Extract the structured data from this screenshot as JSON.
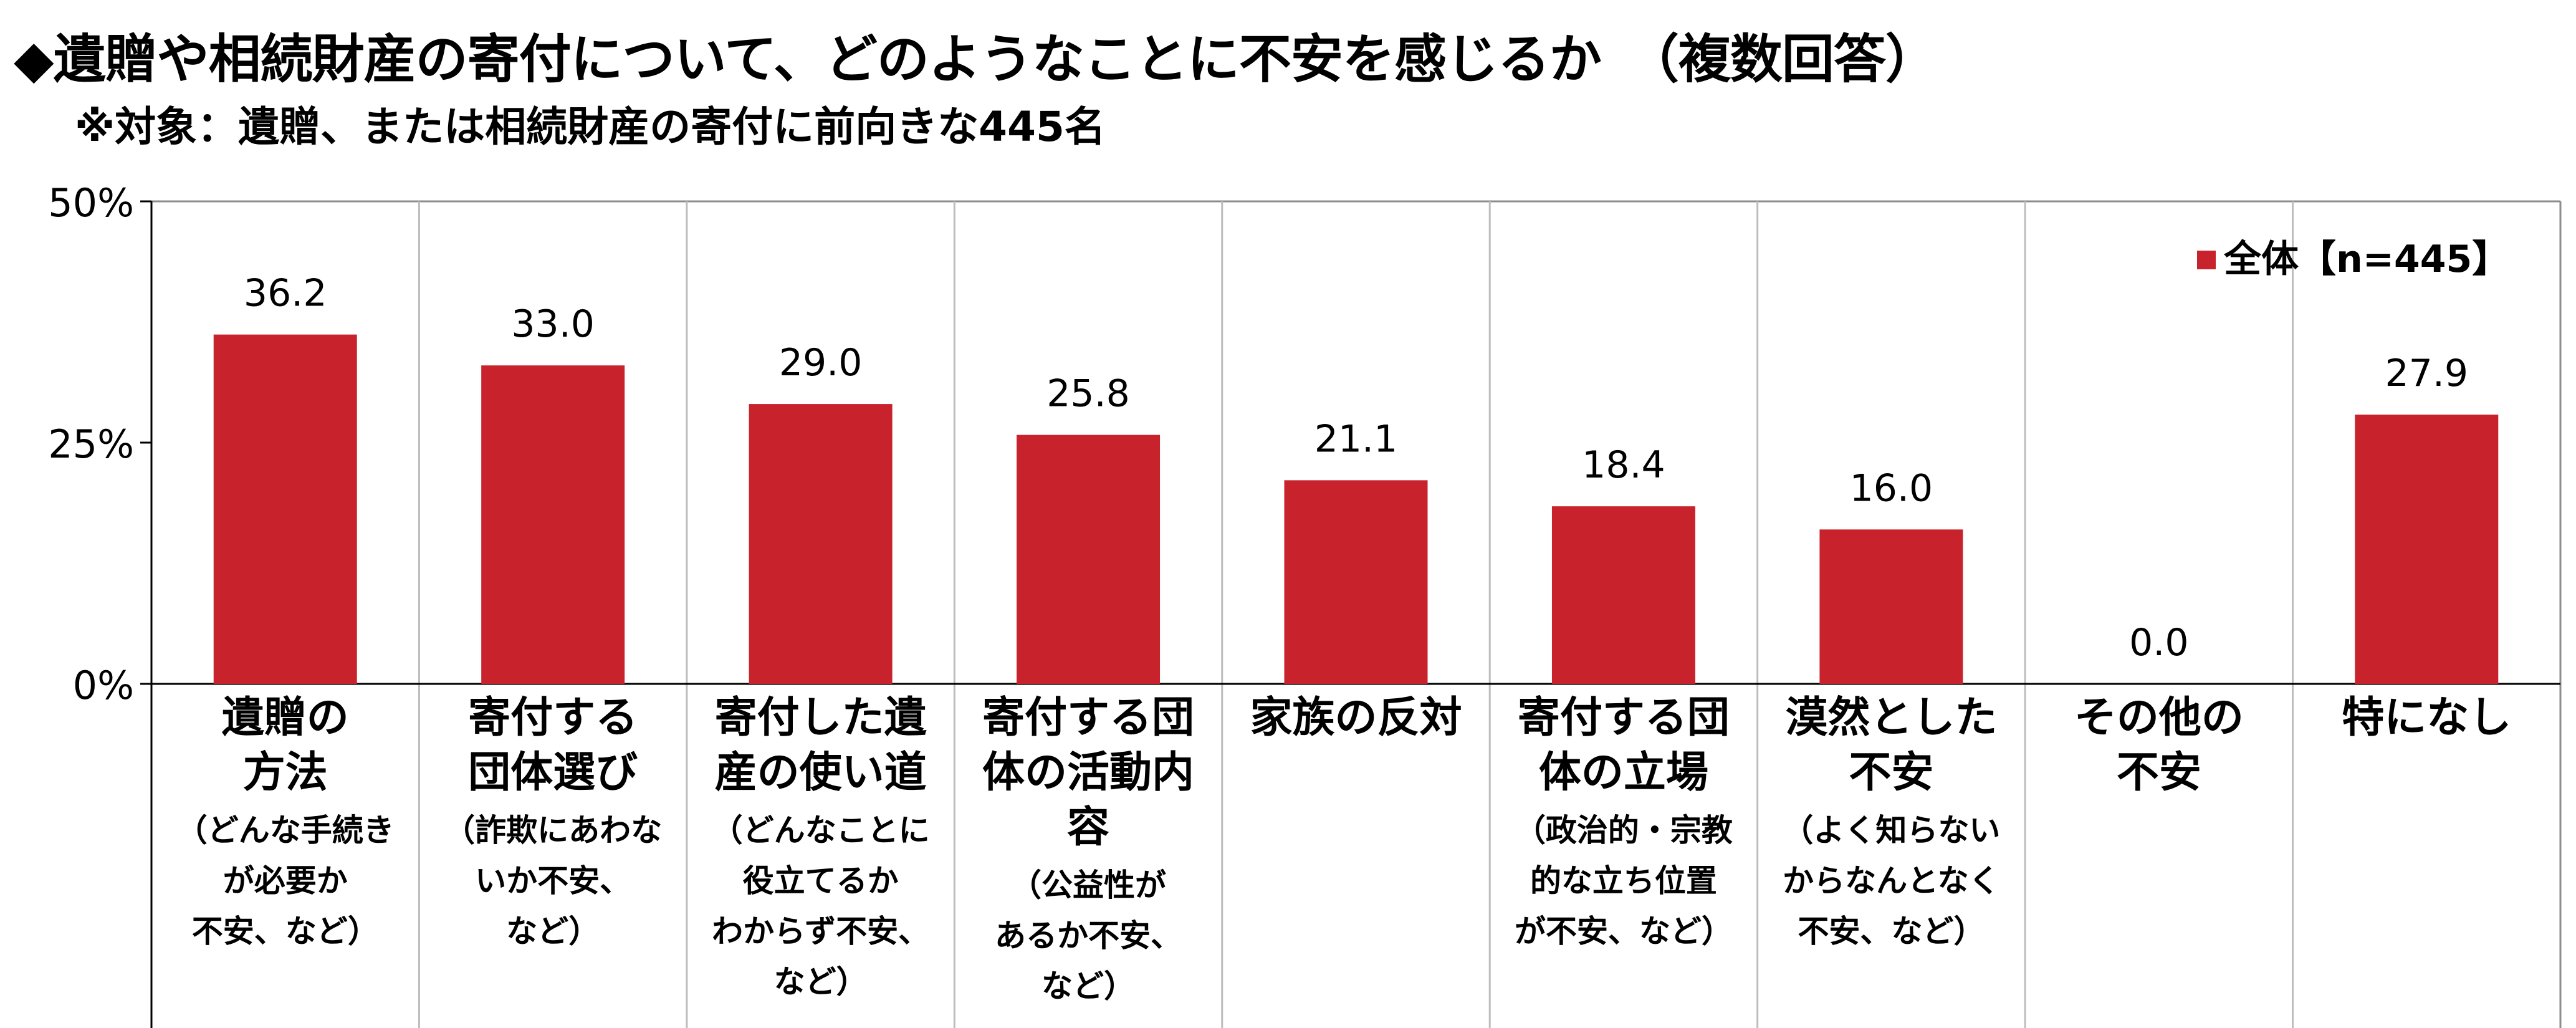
{
  "title": "◆遺贈や相続財産の寄付について、どのようなことに不安を感じるか　（複数回答）",
  "subtitle": "※対象：遺贈、または相続財産の寄付に前向きな445名",
  "chart_data": {
    "type": "bar",
    "title": "◆遺贈や相続財産の寄付について、どのようなことに不安を感じるか　（複数回答）",
    "xlabel": "",
    "ylabel": "",
    "ylim": [
      0,
      50
    ],
    "yticks": [
      "0%",
      "25%",
      "50%"
    ],
    "ytick_values": [
      0,
      25,
      50
    ],
    "grid": "vertical category separators",
    "legend_position": "top-right",
    "bar_color": "#C8232C",
    "categories": [
      {
        "main": "遺贈の\n方法",
        "note": "（どんな手続き\nが必要か\n不安、など）"
      },
      {
        "main": "寄付する\n団体選び",
        "note": "（詐欺にあわな\nいか不安、\nなど）"
      },
      {
        "main": "寄付した遺\n産の使い道",
        "note": "（どんなことに\n役立てるか\nわからず不安、\nなど）"
      },
      {
        "main": "寄付する団\n体の活動内\n容",
        "note": "（公益性が\nあるか不安、\nなど）"
      },
      {
        "main": "家族の反対",
        "note": ""
      },
      {
        "main": "寄付する団\n体の立場",
        "note": "（政治的・宗教\n的な立ち位置\nが不安、など）"
      },
      {
        "main": "漠然とした\n不安",
        "note": "（よく知らない\nからなんとなく\n不安、など）"
      },
      {
        "main": "その他の\n不安",
        "note": ""
      },
      {
        "main": "特になし",
        "note": ""
      }
    ],
    "series": [
      {
        "name": "全体【n=445】",
        "values": [
          36.2,
          33.0,
          29.0,
          25.8,
          21.1,
          18.4,
          16.0,
          0.0,
          27.9
        ],
        "labels": [
          "36.2",
          "33.0",
          "29.0",
          "25.8",
          "21.1",
          "18.4",
          "16.0",
          "0.0",
          "27.9"
        ]
      }
    ]
  }
}
